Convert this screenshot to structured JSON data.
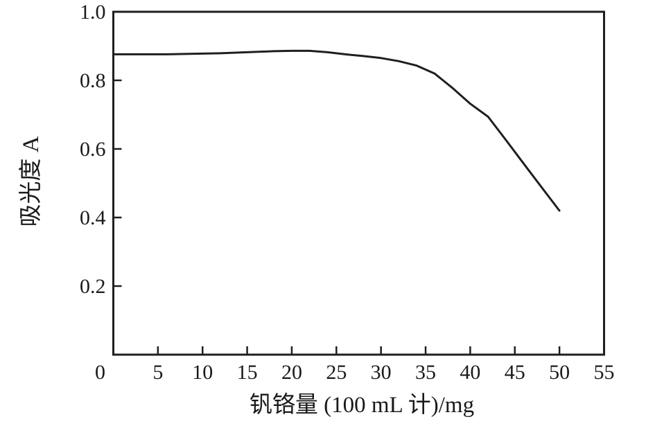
{
  "figure": {
    "background_color": "#ffffff",
    "text_color": "#1a1a1a",
    "line_color": "#1f1f1f"
  },
  "chart_data": {
    "type": "line",
    "title": "",
    "xlabel": "钒铬量 (100 mL 计)/mg",
    "ylabel": "吸光度 A",
    "xlim": [
      0,
      55
    ],
    "ylim": [
      0,
      1.0
    ],
    "grid": false,
    "frame": "full-box",
    "tick_direction": "in",
    "legend": "none",
    "x_ticks": [
      {
        "value": 0,
        "label": "0"
      },
      {
        "value": 5,
        "label": "5"
      },
      {
        "value": 10,
        "label": "10"
      },
      {
        "value": 15,
        "label": "15"
      },
      {
        "value": 20,
        "label": "20"
      },
      {
        "value": 25,
        "label": "25"
      },
      {
        "value": 30,
        "label": "30"
      },
      {
        "value": 35,
        "label": "35"
      },
      {
        "value": 40,
        "label": "40"
      },
      {
        "value": 45,
        "label": "45"
      },
      {
        "value": 50,
        "label": "50"
      },
      {
        "value": 55,
        "label": "55"
      }
    ],
    "y_ticks": [
      {
        "value": 0.2,
        "label": "0.2"
      },
      {
        "value": 0.4,
        "label": "0.4"
      },
      {
        "value": 0.6,
        "label": "0.6"
      },
      {
        "value": 0.8,
        "label": "0.8"
      },
      {
        "value": 1.0,
        "label": "1.0"
      }
    ],
    "series": [
      {
        "name": "absorbance-curve",
        "color": "#1f1f1f",
        "x": [
          0,
          2,
          4,
          6,
          8,
          10,
          12,
          14,
          16,
          18,
          20,
          22,
          24,
          26,
          28,
          30,
          32,
          34,
          36,
          38,
          40,
          42,
          44,
          46,
          48,
          50
        ],
        "y": [
          0.876,
          0.876,
          0.876,
          0.876,
          0.877,
          0.878,
          0.879,
          0.881,
          0.883,
          0.885,
          0.886,
          0.886,
          0.882,
          0.876,
          0.871,
          0.865,
          0.856,
          0.843,
          0.82,
          0.778,
          0.732,
          0.694,
          0.626,
          0.557,
          0.488,
          0.42
        ]
      }
    ]
  }
}
